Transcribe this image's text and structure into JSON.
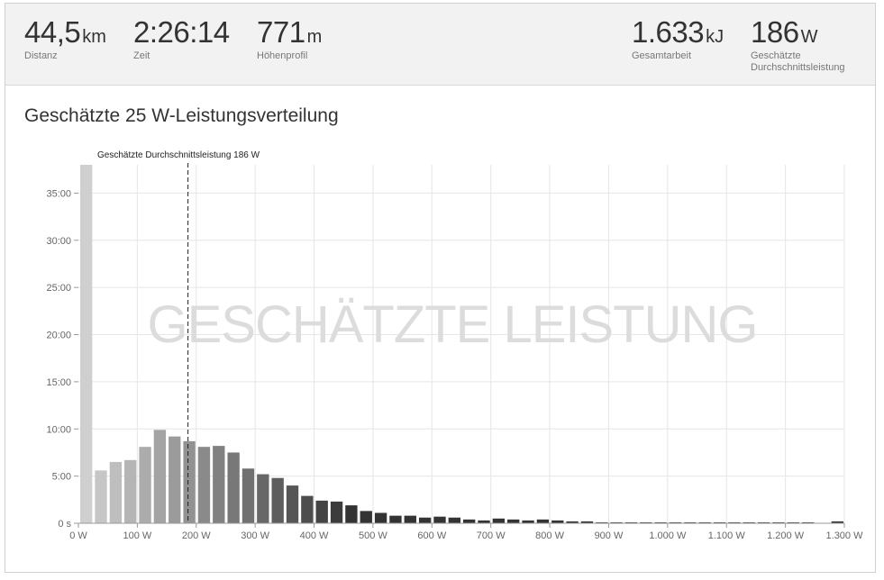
{
  "stats": [
    {
      "value": "44,5",
      "unit": "km",
      "label": "Distanz",
      "label2": ""
    },
    {
      "value": "2:26:14",
      "unit": "",
      "label": "Zeit",
      "label2": ""
    },
    {
      "value": "771",
      "unit": "m",
      "label": "Höhenprofil",
      "label2": ""
    },
    {
      "value": "1.633",
      "unit": "kJ",
      "label": "Gesamtarbeit",
      "label2": ""
    },
    {
      "value": "186",
      "unit": "W",
      "label": "Geschätzte",
      "label2": "Durchschnittsleistung"
    }
  ],
  "section_title": "Geschätzte 25 W-Leistungsverteilung",
  "chart_data": {
    "type": "bar",
    "title": "",
    "watermark": "GESCHÄTZTE LEISTUNG",
    "x_unit": "W",
    "y_unit": "minutes",
    "xlim": [
      0,
      1300
    ],
    "ylim": [
      0,
      38
    ],
    "x_ticks": [
      "0 W",
      "100 W",
      "200 W",
      "300 W",
      "400 W",
      "500 W",
      "600 W",
      "700 W",
      "800 W",
      "900 W",
      "1.000 W",
      "1.100 W",
      "1.200 W",
      "1.300 W"
    ],
    "y_ticks": [
      "0 s",
      "5:00",
      "10:00",
      "15:00",
      "20:00",
      "25:00",
      "30:00",
      "35:00"
    ],
    "bin_width": 25,
    "bin_starts": [
      0,
      25,
      50,
      75,
      100,
      125,
      150,
      175,
      200,
      225,
      250,
      275,
      300,
      325,
      350,
      375,
      400,
      425,
      450,
      475,
      500,
      525,
      550,
      575,
      600,
      625,
      650,
      675,
      700,
      725,
      750,
      775,
      800,
      825,
      850,
      875,
      900,
      925,
      950,
      975,
      1000,
      1025,
      1050,
      1075,
      1100,
      1125,
      1150,
      1175,
      1200,
      1225,
      1250,
      1275
    ],
    "values": [
      38,
      5.6,
      6.5,
      6.7,
      8.1,
      9.9,
      9.2,
      8.7,
      8.1,
      8.2,
      7.5,
      5.8,
      5.2,
      4.8,
      4.0,
      2.9,
      2.4,
      2.3,
      1.9,
      1.3,
      1.1,
      0.8,
      0.8,
      0.6,
      0.7,
      0.6,
      0.4,
      0.3,
      0.5,
      0.4,
      0.3,
      0.4,
      0.3,
      0.2,
      0.2,
      0.1,
      0.1,
      0.1,
      0.1,
      0.1,
      0.1,
      0.1,
      0.1,
      0.1,
      0.1,
      0.1,
      0.1,
      0.1,
      0.1,
      0.1,
      0.0,
      0.2
    ],
    "average_line": {
      "value": 186,
      "label": "Geschätzte Durchschnittsleistung 186 W"
    },
    "grid": true,
    "colors": {
      "light": "#cfcfcf",
      "dark": "#333333",
      "grid": "#e6e6e6"
    }
  }
}
